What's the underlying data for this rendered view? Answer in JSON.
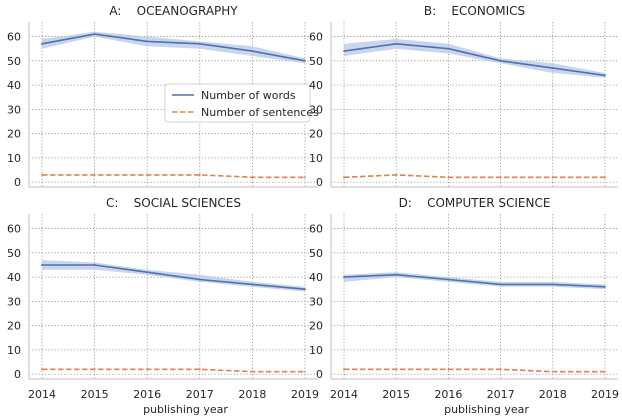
{
  "chart_data": {
    "type": "line",
    "figure": "Faceted line chart: words and sentences by publishing year",
    "x": [
      2014,
      2015,
      2016,
      2017,
      2018,
      2019
    ],
    "xlabel": "publishing year",
    "ylim": [
      -2,
      66
    ],
    "yticks": [
      0,
      10,
      20,
      30,
      40,
      50,
      60
    ],
    "grid": true,
    "grid_style": "dotted",
    "legend": {
      "placement": "inside panel A, center-right",
      "entries": [
        "Number of words",
        "Number of sentences"
      ]
    },
    "colors": {
      "words": "#4c72b0",
      "words_band": "#b7c7e6",
      "sentences": "#dd8452",
      "grid": "#8c8c8c",
      "spine": "#cccccc"
    },
    "panels": [
      {
        "title": "A:    OCEANOGRAPHY",
        "series": [
          {
            "name": "Number of words",
            "values": [
              57,
              61,
              58,
              57,
              54,
              50
            ],
            "ci_low": [
              55,
              60,
              56,
              55,
              52,
              49
            ],
            "ci_high": [
              59,
              62,
              60,
              58,
              56,
              51
            ]
          },
          {
            "name": "Number of sentences",
            "values": [
              3,
              3,
              3,
              3,
              2,
              2
            ]
          }
        ]
      },
      {
        "title": "B:    ECONOMICS",
        "series": [
          {
            "name": "Number of words",
            "values": [
              54,
              57,
              55,
              50,
              47,
              44
            ],
            "ci_low": [
              52,
              55,
              53,
              49,
              45,
              43
            ],
            "ci_high": [
              57,
              59,
              57,
              51,
              49,
              45
            ]
          },
          {
            "name": "Number of sentences",
            "values": [
              2,
              3,
              2,
              2,
              2,
              2
            ]
          }
        ]
      },
      {
        "title": "C:    SOCIAL SCIENCES",
        "series": [
          {
            "name": "Number of words",
            "values": [
              45,
              45,
              42,
              39,
              37,
              35
            ],
            "ci_low": [
              43,
              43,
              41,
              38,
              36,
              34
            ],
            "ci_high": [
              47,
              46,
              43,
              41,
              38,
              36
            ]
          },
          {
            "name": "Number of sentences",
            "values": [
              2,
              2,
              2,
              2,
              1,
              1
            ]
          }
        ]
      },
      {
        "title": "D:    COMPUTER SCIENCE",
        "series": [
          {
            "name": "Number of words",
            "values": [
              40,
              41,
              39,
              37,
              37,
              36
            ],
            "ci_low": [
              38,
              40,
              38,
              36,
              36,
              35
            ],
            "ci_high": [
              41,
              42,
              40,
              38,
              38,
              37
            ]
          },
          {
            "name": "Number of sentences",
            "values": [
              2,
              2,
              2,
              2,
              1,
              1
            ]
          }
        ]
      }
    ]
  }
}
